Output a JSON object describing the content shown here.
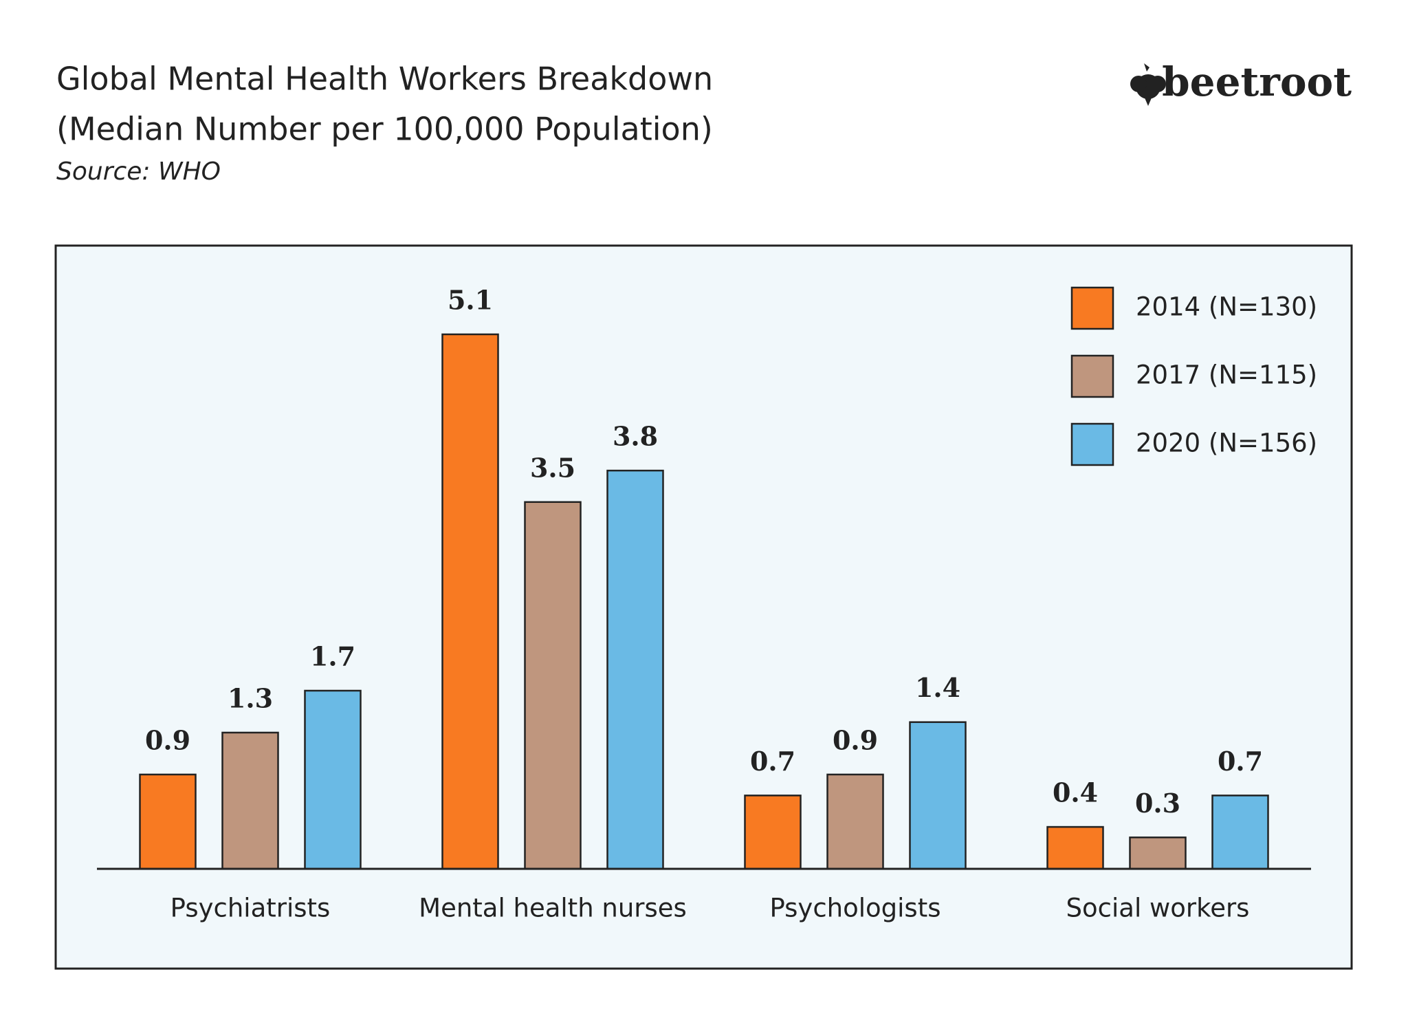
{
  "logo": "beetroot",
  "chart_data": {
    "type": "bar",
    "title": "Global Mental Health Workers Breakdown",
    "subtitle": "(Median Number per 100,000 Population)",
    "source": "Source: WHO",
    "categories": [
      "Psychiatrists",
      "Mental health nurses",
      "Psychologists",
      "Social workers"
    ],
    "series": [
      {
        "name": "2014 (N=130)",
        "color": "#f87a22",
        "values": [
          0.9,
          5.1,
          0.7,
          0.4
        ]
      },
      {
        "name": "2017 (N=115)",
        "color": "#bf967e",
        "values": [
          1.3,
          3.5,
          0.9,
          0.3
        ]
      },
      {
        "name": "2020 (N=156)",
        "color": "#6abae5",
        "values": [
          1.7,
          3.8,
          1.4,
          0.7
        ]
      }
    ],
    "legend": "top-right"
  }
}
